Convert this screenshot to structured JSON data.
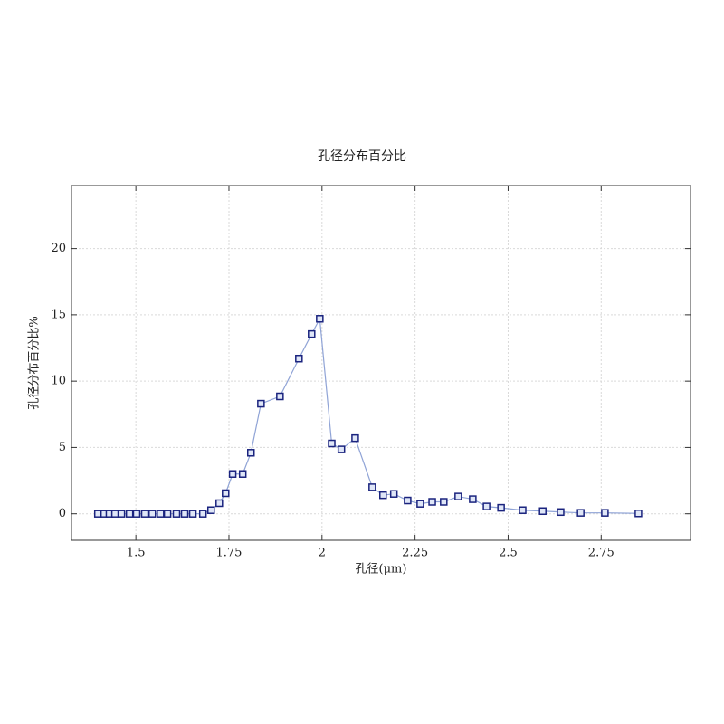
{
  "chart_data": {
    "type": "line",
    "title": "孔径分布百分比",
    "x_label": "孔径(μm)",
    "y_label": "孔径分布百分比%",
    "x": [
      1.398,
      1.415,
      1.429,
      1.444,
      1.461,
      1.483,
      1.502,
      1.524,
      1.544,
      1.566,
      1.585,
      1.609,
      1.631,
      1.653,
      1.68,
      1.702,
      1.724,
      1.741,
      1.76,
      1.787,
      1.809,
      1.836,
      1.887,
      1.938,
      1.972,
      1.994,
      2.026,
      2.052,
      2.089,
      2.135,
      2.164,
      2.193,
      2.23,
      2.264,
      2.296,
      2.327,
      2.366,
      2.405,
      2.442,
      2.481,
      2.539,
      2.593,
      2.641,
      2.695,
      2.76,
      2.85
    ],
    "series": [
      {
        "name": "孔径分布百分比",
        "color": "#8fa3d6",
        "marker_color": "#1a237e",
        "values": [
          0,
          0,
          0,
          0,
          0,
          0,
          0,
          0,
          0,
          0,
          0,
          0,
          0,
          0,
          0,
          0.27,
          0.8,
          1.55,
          3.0,
          3.0,
          4.6,
          8.3,
          8.85,
          11.7,
          13.55,
          14.7,
          5.3,
          4.85,
          5.7,
          2.0,
          1.4,
          1.5,
          1.0,
          0.75,
          0.9,
          0.9,
          1.3,
          1.1,
          0.55,
          0.45,
          0.27,
          0.2,
          0.13,
          0.07,
          0.07,
          0.03
        ]
      }
    ],
    "xlim": [
      1.327,
      2.99
    ],
    "ylim": [
      -2,
      24.75
    ],
    "xticks": [
      1.5,
      1.75,
      2,
      2.25,
      2.5,
      2.75
    ],
    "yticks": [
      0,
      5,
      10,
      15,
      20
    ],
    "grid": true
  }
}
